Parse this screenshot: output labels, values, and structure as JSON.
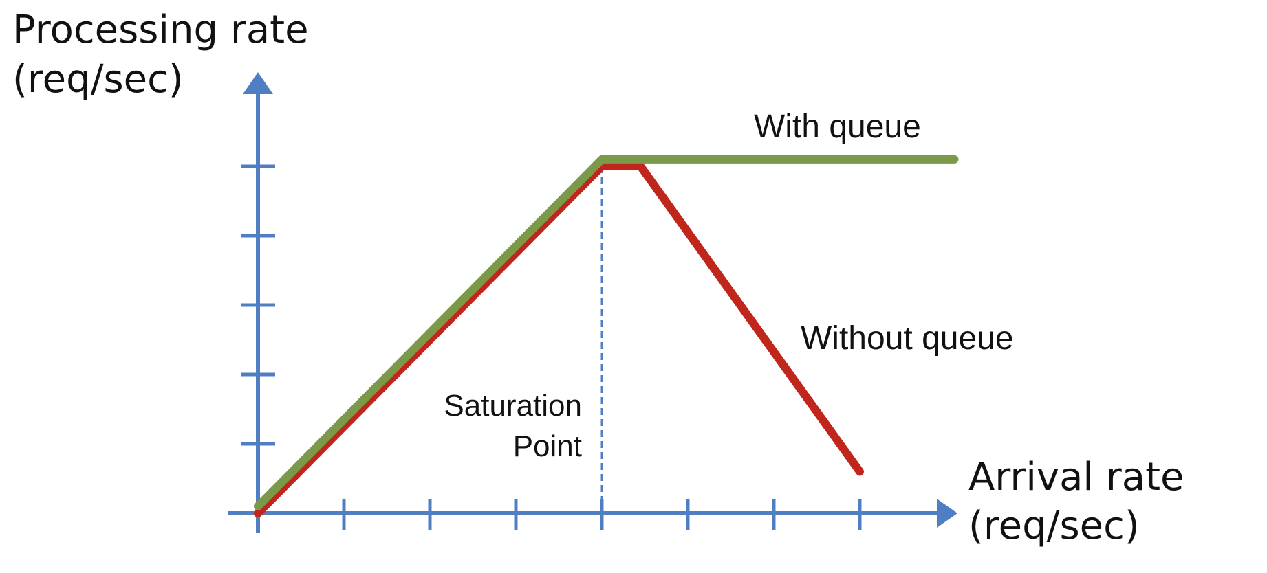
{
  "chart_data": {
    "type": "line",
    "ylabel_lines": [
      "Processing rate",
      "(req/sec)"
    ],
    "xlabel_lines": [
      "Arrival rate",
      "(req/sec)"
    ],
    "xlim": [
      0,
      8
    ],
    "ylim": [
      0,
      5
    ],
    "x_ticks": [
      1,
      2,
      3,
      4,
      5,
      6,
      7
    ],
    "y_ticks": [
      1,
      2,
      3,
      4,
      5
    ],
    "series": [
      {
        "name": "With queue",
        "color": "#7a9a4a",
        "points": [
          [
            0,
            0.1
          ],
          [
            4,
            5.1
          ],
          [
            8.1,
            5.1
          ]
        ]
      },
      {
        "name": "Without queue",
        "color": "#c0261c",
        "points": [
          [
            0,
            0
          ],
          [
            4,
            5.0
          ],
          [
            4.45,
            5.0
          ],
          [
            7,
            0.6
          ]
        ]
      }
    ],
    "annotations": {
      "saturation_lines": [
        "Saturation",
        "Point"
      ],
      "saturation_x": 4
    },
    "colors": {
      "axis": "#4f7fc2"
    },
    "grid": false
  }
}
